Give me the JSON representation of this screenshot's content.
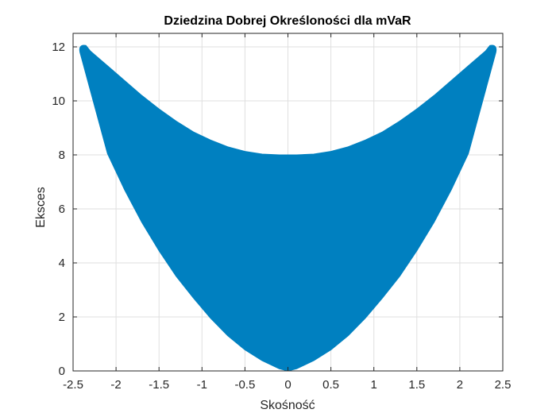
{
  "chart_data": {
    "type": "area",
    "title": "Dziedzina Dobrej Określoności dla mVaR",
    "xlabel": "Skośność",
    "ylabel": "Eksces",
    "xlim": [
      -2.5,
      2.5
    ],
    "ylim": [
      0,
      12.5
    ],
    "xticks": [
      -2.5,
      -2,
      -1.5,
      -1,
      -0.5,
      0,
      0.5,
      1,
      1.5,
      2,
      2.5
    ],
    "xtick_labels": [
      "-2.5",
      "-2",
      "-1.5",
      "-1",
      "-0.5",
      "0",
      "0.5",
      "1",
      "1.5",
      "2",
      "2.5"
    ],
    "yticks": [
      0,
      2,
      4,
      6,
      8,
      10,
      12
    ],
    "ytick_labels": [
      "0",
      "2",
      "4",
      "6",
      "8",
      "10",
      "12"
    ],
    "grid": true,
    "fill_color": "#0080c0",
    "series": [
      {
        "name": "",
        "upper_boundary": {
          "x": [
            -2.35,
            -2.3,
            -2.1,
            -1.9,
            -1.7,
            -1.5,
            -1.3,
            -1.1,
            -0.9,
            -0.7,
            -0.5,
            -0.3,
            -0.1,
            0,
            0.1,
            0.3,
            0.5,
            0.7,
            0.9,
            1.1,
            1.3,
            1.5,
            1.7,
            1.9,
            2.1,
            2.3,
            2.35
          ],
          "y": [
            12.05,
            11.85,
            11.3,
            10.75,
            10.2,
            9.7,
            9.25,
            8.85,
            8.55,
            8.3,
            8.13,
            8.03,
            8.0,
            8.0,
            8.0,
            8.03,
            8.13,
            8.3,
            8.55,
            8.85,
            9.25,
            9.7,
            10.2,
            10.75,
            11.3,
            11.85,
            12.05
          ]
        },
        "lower_boundary": {
          "x": [
            -2.42,
            -2.1,
            -1.9,
            -1.7,
            -1.5,
            -1.3,
            -1.1,
            -0.9,
            -0.7,
            -0.5,
            -0.3,
            -0.1,
            0,
            0.1,
            0.3,
            0.5,
            0.7,
            0.9,
            1.1,
            1.3,
            1.5,
            1.7,
            1.9,
            2.1,
            2.42
          ],
          "y": [
            11.8,
            8.05,
            6.7,
            5.5,
            4.45,
            3.5,
            2.7,
            1.95,
            1.3,
            0.78,
            0.38,
            0.08,
            0,
            0.08,
            0.38,
            0.78,
            1.3,
            1.95,
            2.7,
            3.5,
            4.45,
            5.5,
            6.7,
            8.05,
            11.8
          ]
        }
      }
    ]
  }
}
